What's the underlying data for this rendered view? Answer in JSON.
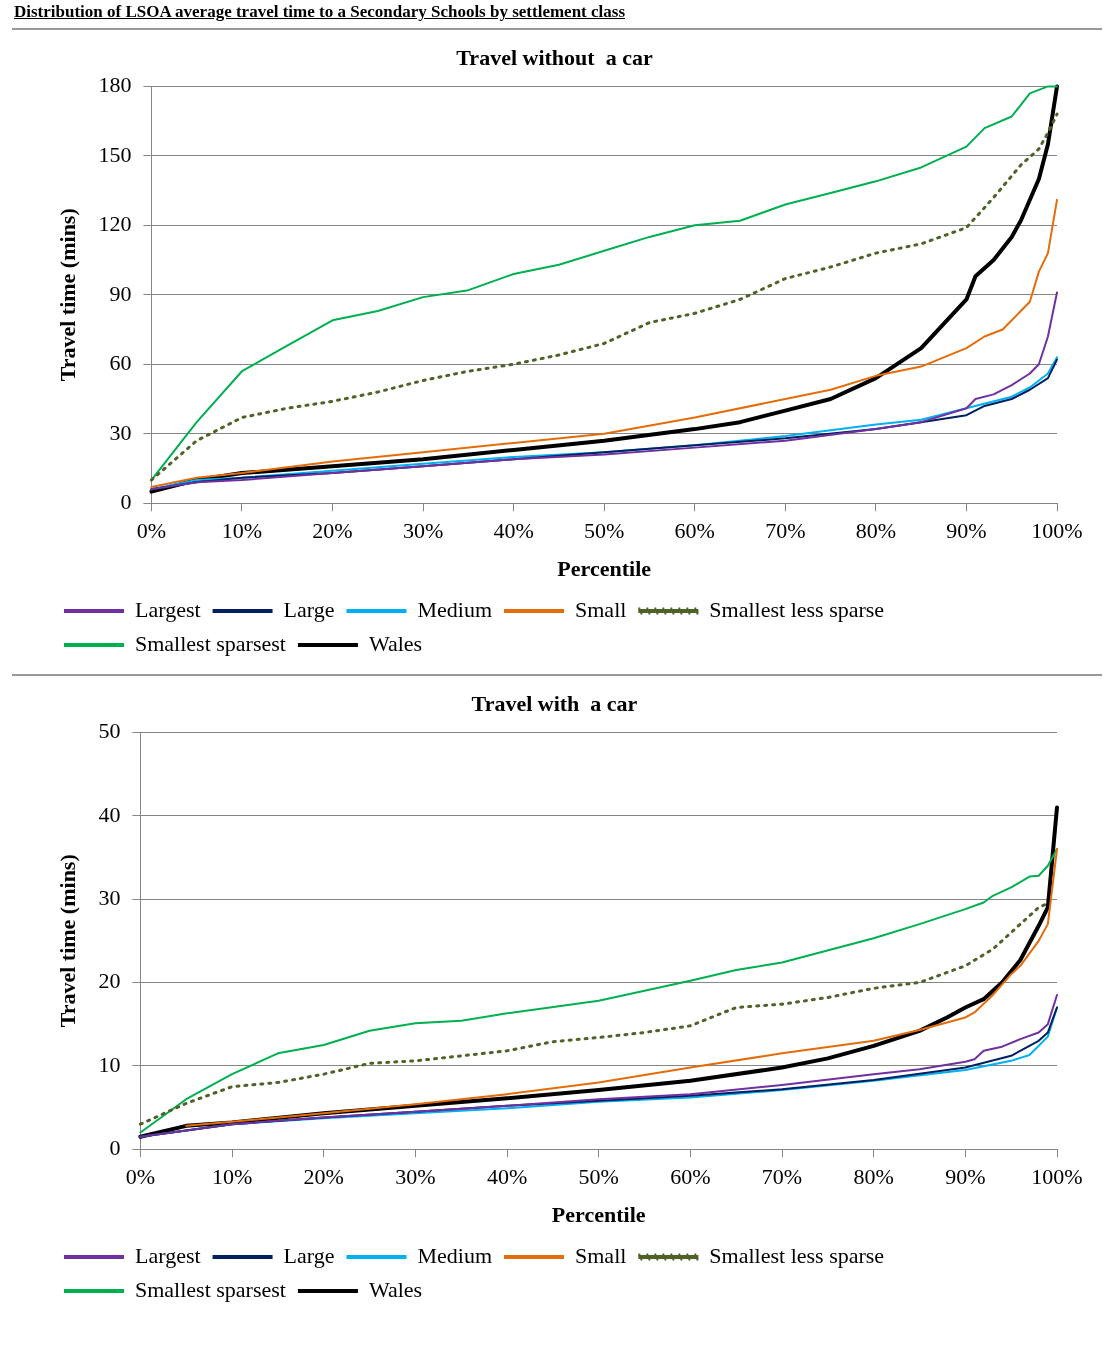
{
  "chart_data": [
    {
      "type": "line",
      "title": "Travel without  a car",
      "xlabel": "Percentile",
      "ylabel": "Travel time (mins)",
      "annotations": [
        "Distribution of LSOA average travel time to a Secondary Schools by settlement class"
      ],
      "xlim": [
        0,
        100
      ],
      "xticks": [
        {
          "value": 0,
          "label": "0%"
        },
        {
          "value": 10,
          "label": "10%"
        },
        {
          "value": 20,
          "label": "20%"
        },
        {
          "value": 30,
          "label": "30%"
        },
        {
          "value": 40,
          "label": "40%"
        },
        {
          "value": 50,
          "label": "50%"
        },
        {
          "value": 60,
          "label": "60%"
        },
        {
          "value": 70,
          "label": "70%"
        },
        {
          "value": 80,
          "label": "80%"
        },
        {
          "value": 90,
          "label": "90%"
        },
        {
          "value": 100,
          "label": "100%"
        }
      ],
      "ylim": [
        0,
        180
      ],
      "yticks": [
        0,
        30,
        60,
        90,
        120,
        150,
        180
      ],
      "grid": "y",
      "legend": "bottom",
      "marker": "none",
      "series": [
        {
          "name": "Largest",
          "color": "#7030a0",
          "x": [
            0,
            5,
            10,
            20,
            30,
            40,
            50,
            60,
            70,
            80,
            85,
            90,
            91,
            93,
            95,
            97,
            98,
            99,
            100
          ],
          "values": [
            6,
            9,
            10,
            13,
            16,
            19,
            21,
            24,
            27,
            32,
            35,
            41,
            45,
            47,
            51,
            56,
            60,
            72,
            91
          ]
        },
        {
          "name": "Large",
          "color": "#002060",
          "x": [
            0,
            5,
            10,
            20,
            30,
            40,
            50,
            60,
            70,
            80,
            85,
            90,
            92,
            95,
            97,
            99,
            100
          ],
          "values": [
            6,
            9,
            11,
            13,
            16,
            19,
            22,
            25,
            28,
            32,
            35,
            38,
            42,
            45,
            49,
            54,
            62
          ]
        },
        {
          "name": "Medium",
          "color": "#00b0f0",
          "x": [
            0,
            5,
            10,
            20,
            30,
            40,
            50,
            60,
            70,
            80,
            85,
            90,
            95,
            97,
            99,
            100
          ],
          "values": [
            6,
            10,
            11,
            14,
            17,
            20,
            22,
            25,
            29,
            34,
            36,
            41,
            46,
            50,
            56,
            63
          ]
        },
        {
          "name": "Small",
          "color": "#e46c0a",
          "x": [
            0,
            5,
            10,
            20,
            30,
            40,
            50,
            60,
            70,
            75,
            80,
            85,
            90,
            92,
            94,
            96,
            97,
            98,
            99,
            100
          ],
          "values": [
            7,
            11,
            13,
            18,
            22,
            26,
            30,
            37,
            45,
            49,
            55,
            59,
            67,
            72,
            75,
            83,
            87,
            100,
            108,
            131
          ]
        },
        {
          "name": "Smallest less sparse",
          "color": "#4f6228",
          "line_style": "dotted",
          "x": [
            0,
            5,
            10,
            15,
            20,
            25,
            30,
            35,
            40,
            45,
            50,
            55,
            60,
            65,
            70,
            75,
            80,
            85,
            90,
            93,
            96,
            98,
            99,
            100
          ],
          "values": [
            10,
            27,
            37,
            41,
            44,
            48,
            53,
            57,
            60,
            64,
            69,
            78,
            82,
            88,
            97,
            102,
            108,
            112,
            119,
            132,
            146,
            153,
            160,
            168
          ]
        },
        {
          "name": "Smallest sparsest",
          "color": "#00b050",
          "x": [
            0,
            5,
            10,
            15,
            20,
            25,
            30,
            35,
            40,
            45,
            50,
            55,
            60,
            65,
            70,
            75,
            80,
            85,
            90,
            92,
            95,
            97,
            99,
            100
          ],
          "values": [
            10,
            35,
            57,
            68,
            79,
            83,
            89,
            92,
            99,
            103,
            109,
            115,
            120,
            122,
            129,
            134,
            139,
            145,
            154,
            162,
            167,
            177,
            180,
            180
          ]
        },
        {
          "name": "Wales",
          "color": "#000000",
          "x": [
            0,
            5,
            10,
            20,
            30,
            40,
            50,
            60,
            65,
            70,
            75,
            80,
            85,
            90,
            91,
            93,
            95,
            96,
            98,
            99,
            100
          ],
          "values": [
            5,
            10,
            13,
            16,
            19,
            23,
            27,
            32,
            35,
            40,
            45,
            54,
            67,
            88,
            98,
            105,
            115,
            122,
            140,
            155,
            180
          ]
        }
      ]
    },
    {
      "type": "line",
      "title": "Travel with  a car",
      "xlabel": "Percentile",
      "ylabel": "Travel time (mins)",
      "xlim": [
        0,
        100
      ],
      "xticks": [
        {
          "value": 0,
          "label": "0%"
        },
        {
          "value": 10,
          "label": "10%"
        },
        {
          "value": 20,
          "label": "20%"
        },
        {
          "value": 30,
          "label": "30%"
        },
        {
          "value": 40,
          "label": "40%"
        },
        {
          "value": 50,
          "label": "50%"
        },
        {
          "value": 60,
          "label": "60%"
        },
        {
          "value": 70,
          "label": "70%"
        },
        {
          "value": 80,
          "label": "80%"
        },
        {
          "value": 90,
          "label": "90%"
        },
        {
          "value": 100,
          "label": "100%"
        }
      ],
      "ylim": [
        0,
        50
      ],
      "yticks": [
        0,
        10,
        20,
        30,
        40,
        50
      ],
      "grid": "y",
      "legend": "bottom",
      "marker": "none",
      "series": [
        {
          "name": "Largest",
          "color": "#7030a0",
          "x": [
            0,
            10,
            20,
            30,
            40,
            50,
            60,
            70,
            80,
            85,
            90,
            91,
            92,
            94,
            96,
            98,
            99,
            100
          ],
          "values": [
            1.5,
            3,
            3.8,
            4.5,
            5.2,
            6,
            6.6,
            7.7,
            9,
            9.6,
            10.5,
            10.8,
            11.8,
            12.3,
            13.2,
            14,
            15,
            18.5
          ]
        },
        {
          "name": "Large",
          "color": "#002060",
          "x": [
            0,
            10,
            20,
            30,
            40,
            50,
            60,
            70,
            80,
            90,
            95,
            98,
            99,
            100
          ],
          "values": [
            1.5,
            3,
            3.8,
            4.5,
            5.2,
            5.8,
            6.4,
            7.2,
            8.3,
            9.8,
            11.2,
            13,
            14,
            17
          ]
        },
        {
          "name": "Medium",
          "color": "#00b0f0",
          "x": [
            0,
            10,
            20,
            30,
            40,
            50,
            60,
            70,
            80,
            90,
            95,
            97,
            99,
            100
          ],
          "values": [
            1.5,
            3,
            3.7,
            4.3,
            4.9,
            5.7,
            6.2,
            7.1,
            8.2,
            9.5,
            10.6,
            11.3,
            13.5,
            17
          ]
        },
        {
          "name": "Small",
          "color": "#e46c0a",
          "x": [
            5,
            10,
            20,
            30,
            40,
            50,
            60,
            70,
            80,
            85,
            90,
            91,
            93,
            95,
            96,
            98,
            99,
            100
          ],
          "values": [
            2.8,
            3.3,
            4.3,
            5.4,
            6.6,
            8,
            9.8,
            11.5,
            13,
            14.3,
            15.8,
            16.4,
            18.5,
            21,
            22,
            25,
            27,
            36
          ]
        },
        {
          "name": "Smallest less sparse",
          "color": "#4f6228",
          "line_style": "dotted",
          "x": [
            0,
            5,
            10,
            15,
            20,
            25,
            30,
            40,
            45,
            50,
            55,
            60,
            65,
            70,
            75,
            80,
            85,
            90,
            93,
            96,
            98,
            99
          ],
          "values": [
            3,
            5.5,
            7.5,
            8,
            9,
            10.3,
            10.6,
            11.8,
            12.9,
            13.4,
            14,
            14.8,
            17,
            17.4,
            18.2,
            19.3,
            20,
            22,
            24,
            27,
            29,
            29.5
          ]
        },
        {
          "name": "Smallest sparsest",
          "color": "#00b050",
          "x": [
            0,
            5,
            10,
            15,
            20,
            25,
            30,
            35,
            40,
            50,
            60,
            65,
            70,
            80,
            85,
            90,
            92,
            93,
            95,
            97,
            98,
            99,
            100
          ],
          "values": [
            2,
            6,
            9,
            11.5,
            12.5,
            14.2,
            15.1,
            15.4,
            16.3,
            17.8,
            20.2,
            21.5,
            22.4,
            25.3,
            27,
            28.8,
            29.6,
            30.4,
            31.4,
            32.7,
            32.8,
            34,
            36
          ]
        },
        {
          "name": "Wales",
          "color": "#000000",
          "x": [
            0,
            5,
            10,
            20,
            30,
            40,
            50,
            60,
            70,
            75,
            80,
            85,
            88,
            90,
            92,
            94,
            96,
            98,
            99,
            100
          ],
          "values": [
            1.5,
            2.8,
            3.2,
            4.3,
            5.2,
            6.1,
            7.1,
            8.2,
            9.8,
            10.9,
            12.4,
            14.2,
            15.8,
            17,
            18,
            20,
            22.7,
            26.8,
            29,
            41
          ]
        }
      ]
    }
  ]
}
